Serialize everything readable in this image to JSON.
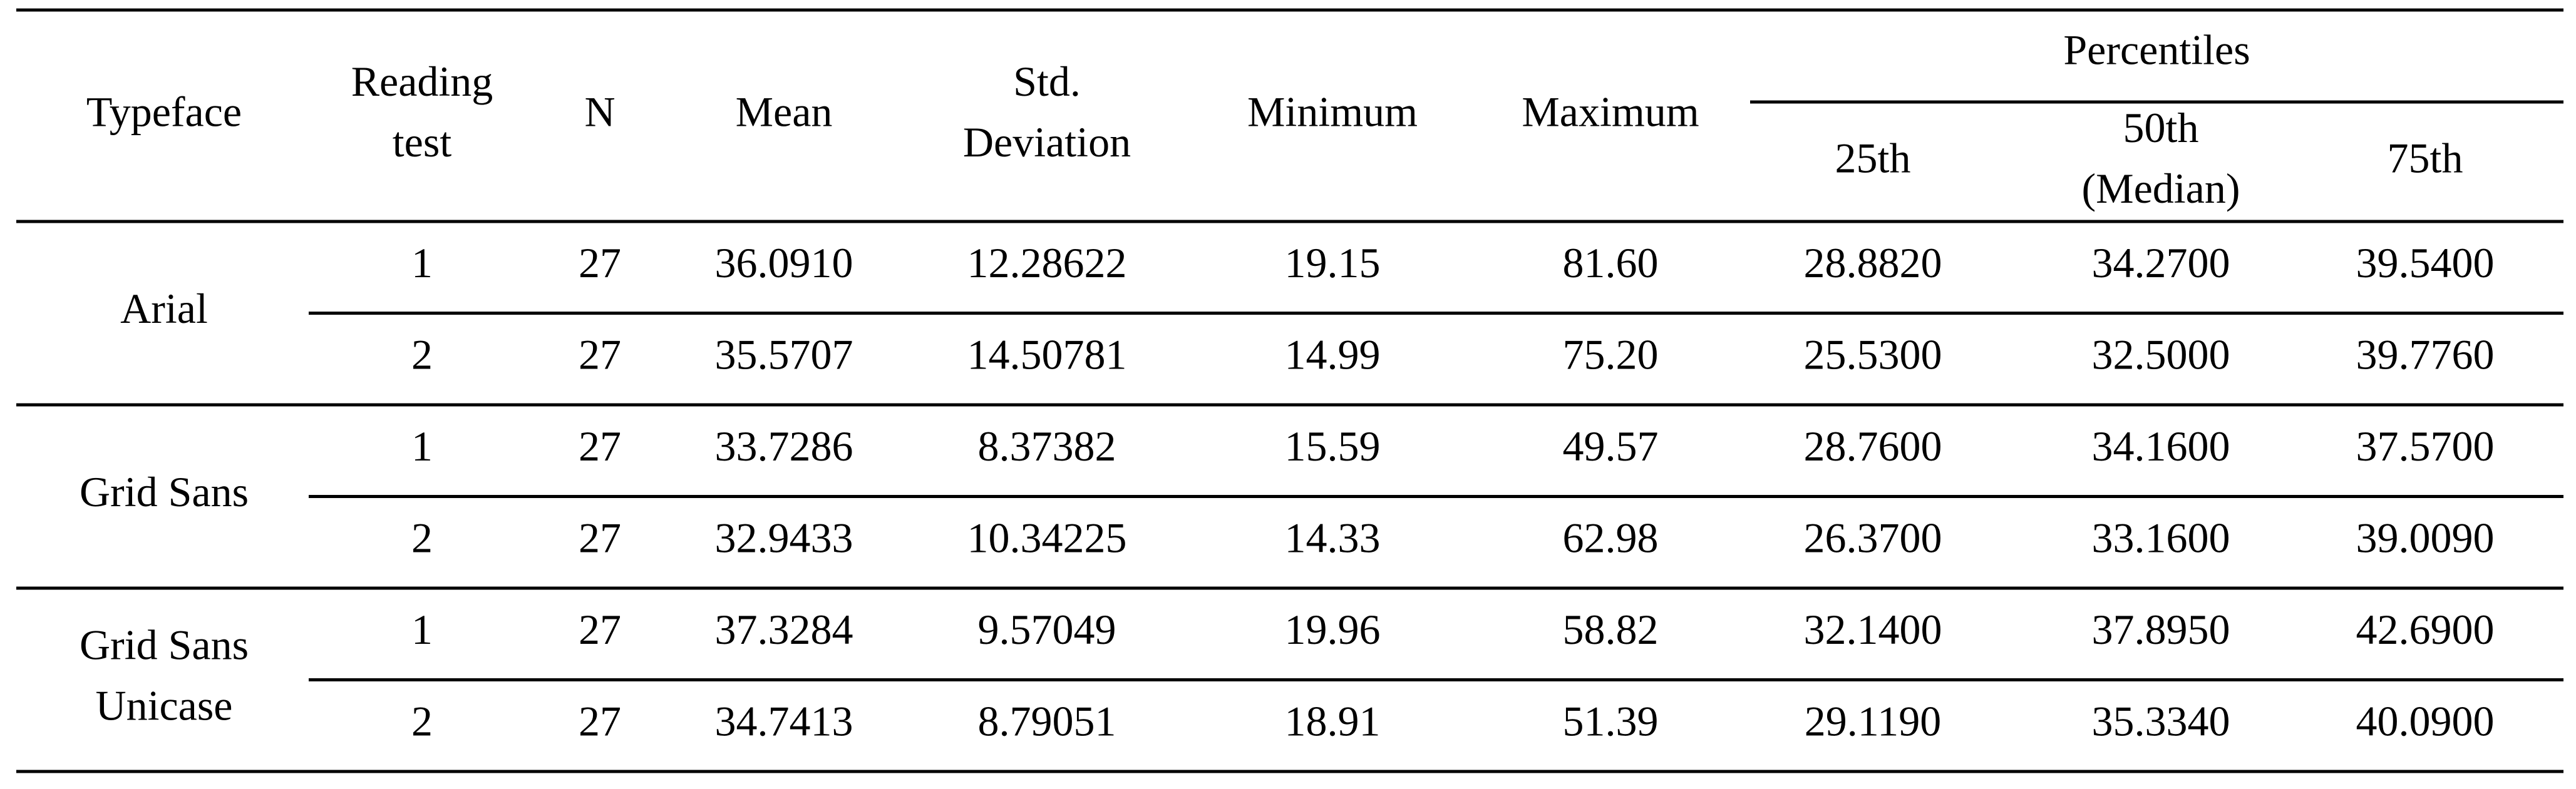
{
  "table": {
    "header": {
      "columns": [
        [
          "Typeface"
        ],
        [
          "Reading",
          "test"
        ],
        [
          "N"
        ],
        [
          "Mean"
        ],
        [
          "Std.",
          "Deviation"
        ],
        [
          "Minimum"
        ],
        [
          "Maximum"
        ]
      ],
      "group": "Percentiles",
      "subcolumns": [
        [
          "25th"
        ],
        [
          "50th",
          "(Median)"
        ],
        [
          "75th"
        ]
      ]
    },
    "groups": [
      {
        "typeface": [
          "Arial"
        ],
        "rows": [
          [
            "1",
            "27",
            "36.0910",
            "12.28622",
            "19.15",
            "81.60",
            "28.8820",
            "34.2700",
            "39.5400"
          ],
          [
            "2",
            "27",
            "35.5707",
            "14.50781",
            "14.99",
            "75.20",
            "25.5300",
            "32.5000",
            "39.7760"
          ]
        ]
      },
      {
        "typeface": [
          "Grid Sans"
        ],
        "rows": [
          [
            "1",
            "27",
            "33.7286",
            "8.37382",
            "15.59",
            "49.57",
            "28.7600",
            "34.1600",
            "37.5700"
          ],
          [
            "2",
            "27",
            "32.9433",
            "10.34225",
            "14.33",
            "62.98",
            "26.3700",
            "33.1600",
            "39.0090"
          ]
        ]
      },
      {
        "typeface": [
          "Grid Sans",
          "Unicase"
        ],
        "rows": [
          [
            "1",
            "27",
            "37.3284",
            "9.57049",
            "19.96",
            "58.82",
            "32.1400",
            "37.8950",
            "42.6900"
          ],
          [
            "2",
            "27",
            "34.7413",
            "8.79051",
            "18.91",
            "51.39",
            "29.1190",
            "35.3340",
            "40.0900"
          ]
        ]
      }
    ]
  }
}
